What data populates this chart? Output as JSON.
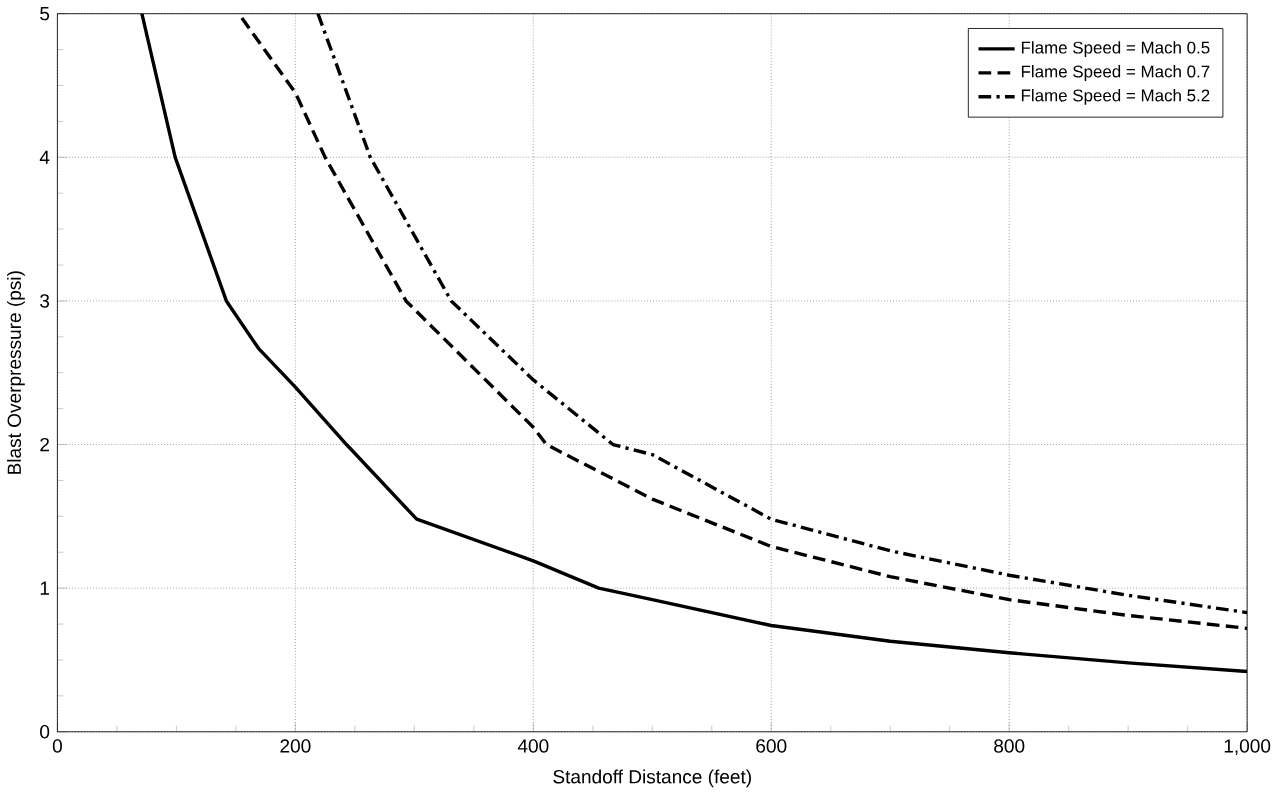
{
  "chart_data": {
    "type": "line",
    "xlabel": "Standoff Distance (feet)",
    "ylabel": "Blast Overpressure (psi)",
    "xlim": [
      0,
      1000
    ],
    "ylim": [
      0,
      5
    ],
    "xticks": [
      0,
      200,
      400,
      600,
      800,
      {
        "value": 1000,
        "label": "1,000"
      }
    ],
    "yticks": [
      0,
      1,
      2,
      3,
      4,
      5
    ],
    "grid": true,
    "legend": "top right",
    "marker": "none",
    "series": [
      {
        "name": "Flame Speed = Mach 0.5",
        "color": "#000000",
        "line_style": "solid",
        "x": [
          71,
          99,
          142,
          169,
          200,
          243,
          302,
          400,
          455,
          500,
          600,
          700,
          800,
          900,
          1000
        ],
        "values": [
          5,
          4,
          3,
          2.67,
          2.4,
          2,
          1.48,
          1.19,
          1.0,
          0.92,
          0.74,
          0.63,
          0.55,
          0.48,
          0.42
        ]
      },
      {
        "name": "Flame Speed = Mach 0.7",
        "color": "#000000",
        "line_style": "dashed",
        "x": [
          155,
          200,
          225,
          293,
          400,
          411,
          500,
          600,
          700,
          800,
          900,
          1000
        ],
        "values": [
          4.97,
          4.45,
          4,
          3,
          2.12,
          2,
          1.62,
          1.29,
          1.08,
          0.92,
          0.81,
          0.72
        ]
      },
      {
        "name": "Flame Speed = Mach 5.2",
        "color": "#000000",
        "line_style": "dashdotted",
        "x": [
          219,
          263,
          331,
          400,
          467,
          500,
          600,
          700,
          800,
          900,
          1000
        ],
        "values": [
          5,
          4,
          3,
          2.45,
          2,
          1.93,
          1.48,
          1.26,
          1.09,
          0.95,
          0.83
        ]
      }
    ]
  }
}
